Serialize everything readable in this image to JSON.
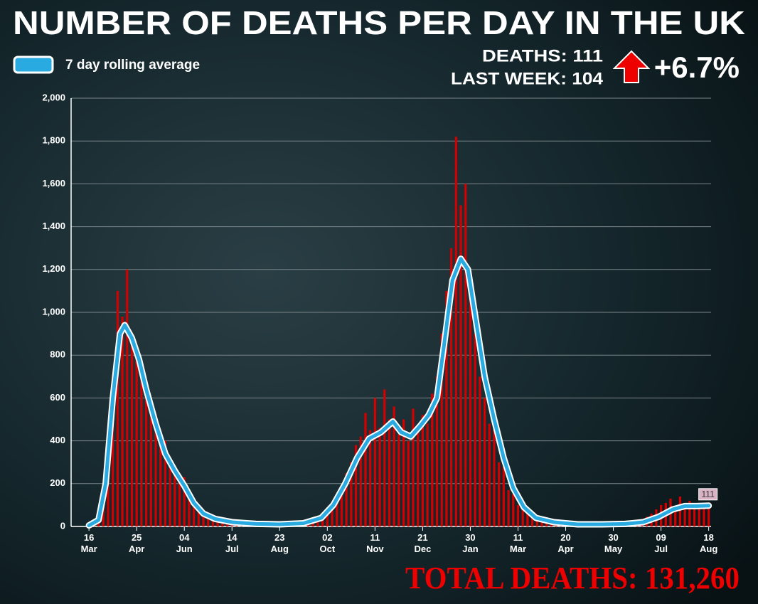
{
  "chart_data": {
    "type": "bar-line",
    "title": "NUMBER OF DEATHS PER DAY IN THE UK",
    "stats": {
      "deaths": "DEATHS: 111",
      "last_week": "LAST WEEK: 104",
      "change": "+6.7%",
      "total": "TOTAL DEATHS: 131,260"
    },
    "xlim": [
      -15,
      522
    ],
    "xticks": [
      {
        "value": 0,
        "label": [
          "16",
          "Mar"
        ]
      },
      {
        "value": 40,
        "label": [
          "25",
          "Apr"
        ]
      },
      {
        "value": 80,
        "label": [
          "04",
          "Jun"
        ]
      },
      {
        "value": 120,
        "label": [
          "14",
          "Jul"
        ]
      },
      {
        "value": 160,
        "label": [
          "23",
          "Aug"
        ]
      },
      {
        "value": 200,
        "label": [
          "02",
          "Oct"
        ]
      },
      {
        "value": 240,
        "label": [
          "11",
          "Nov"
        ]
      },
      {
        "value": 280,
        "label": [
          "21",
          "Dec"
        ]
      },
      {
        "value": 320,
        "label": [
          "30",
          "Jan"
        ]
      },
      {
        "value": 360,
        "label": [
          "11",
          "Mar"
        ]
      },
      {
        "value": 400,
        "label": [
          "20",
          "Apr"
        ]
      },
      {
        "value": 440,
        "label": [
          "30",
          "May"
        ]
      },
      {
        "value": 480,
        "label": [
          "09",
          "Jul"
        ]
      },
      {
        "value": 520,
        "label": [
          "18",
          "Aug"
        ]
      }
    ],
    "ylim": [
      0,
      2000
    ],
    "yticks": [
      0,
      200,
      400,
      600,
      800,
      {
        "value": 1000,
        "label": "1,000"
      },
      {
        "value": 1200,
        "label": "1,200"
      },
      {
        "value": 1400,
        "label": "1,400"
      },
      {
        "value": 1600,
        "label": "1,600"
      },
      {
        "value": 1800,
        "label": "1,800"
      },
      {
        "value": 2000,
        "label": "2,000"
      }
    ],
    "grid": true,
    "bars": {
      "color": "#d40000",
      "x": [
        0,
        4,
        8,
        12,
        16,
        20,
        24,
        28,
        32,
        36,
        40,
        44,
        48,
        52,
        56,
        60,
        64,
        68,
        72,
        76,
        80,
        84,
        88,
        92,
        96,
        100,
        104,
        108,
        112,
        116,
        120,
        124,
        128,
        132,
        136,
        140,
        144,
        148,
        152,
        156,
        160,
        164,
        168,
        172,
        176,
        180,
        184,
        188,
        192,
        196,
        200,
        204,
        208,
        212,
        216,
        220,
        224,
        228,
        232,
        236,
        240,
        244,
        248,
        252,
        256,
        260,
        264,
        268,
        272,
        276,
        280,
        284,
        288,
        292,
        296,
        300,
        304,
        308,
        312,
        316,
        320,
        324,
        328,
        332,
        336,
        340,
        344,
        348,
        352,
        356,
        360,
        364,
        368,
        372,
        376,
        380,
        384,
        388,
        392,
        396,
        400,
        404,
        408,
        412,
        416,
        420,
        424,
        428,
        432,
        436,
        440,
        444,
        448,
        452,
        456,
        460,
        464,
        468,
        472,
        476,
        480,
        484,
        488,
        492,
        496,
        500,
        504,
        508,
        512,
        516,
        520
      ],
      "values": [
        2,
        10,
        40,
        120,
        420,
        700,
        1100,
        980,
        1200,
        850,
        780,
        700,
        650,
        560,
        520,
        380,
        400,
        300,
        270,
        210,
        230,
        140,
        120,
        90,
        60,
        55,
        40,
        35,
        25,
        30,
        18,
        15,
        20,
        12,
        10,
        14,
        8,
        10,
        12,
        9,
        11,
        8,
        12,
        10,
        15,
        18,
        20,
        30,
        38,
        50,
        80,
        100,
        140,
        180,
        250,
        300,
        380,
        420,
        530,
        450,
        600,
        460,
        640,
        500,
        560,
        430,
        500,
        400,
        550,
        450,
        520,
        480,
        620,
        700,
        900,
        1100,
        1300,
        1820,
        1500,
        1600,
        1100,
        900,
        700,
        600,
        480,
        450,
        300,
        280,
        170,
        150,
        100,
        80,
        60,
        45,
        35,
        28,
        20,
        18,
        15,
        12,
        10,
        9,
        8,
        9,
        7,
        10,
        8,
        11,
        9,
        10,
        12,
        14,
        13,
        18,
        22,
        25,
        30,
        45,
        60,
        80,
        100,
        110,
        130,
        95,
        140,
        100,
        120,
        90,
        110,
        100,
        111
      ]
    },
    "series": [
      {
        "name": "7 day rolling average",
        "color": "#29abe2",
        "x": [
          0,
          8,
          14,
          20,
          26,
          30,
          36,
          42,
          48,
          56,
          64,
          72,
          80,
          88,
          96,
          106,
          120,
          140,
          160,
          180,
          195,
          205,
          215,
          225,
          235,
          245,
          255,
          262,
          270,
          278,
          285,
          292,
          298,
          305,
          312,
          318,
          325,
          332,
          340,
          348,
          356,
          365,
          375,
          390,
          410,
          430,
          450,
          465,
          478,
          490,
          500,
          510,
          520
        ],
        "values": [
          5,
          30,
          200,
          600,
          900,
          940,
          880,
          780,
          640,
          480,
          340,
          260,
          190,
          110,
          60,
          35,
          20,
          12,
          10,
          15,
          40,
          100,
          200,
          320,
          410,
          440,
          490,
          440,
          420,
          470,
          520,
          600,
          850,
          1150,
          1250,
          1200,
          950,
          700,
          500,
          320,
          180,
          90,
          40,
          20,
          10,
          10,
          12,
          20,
          45,
          80,
          95,
          95,
          97
        ]
      }
    ]
  }
}
